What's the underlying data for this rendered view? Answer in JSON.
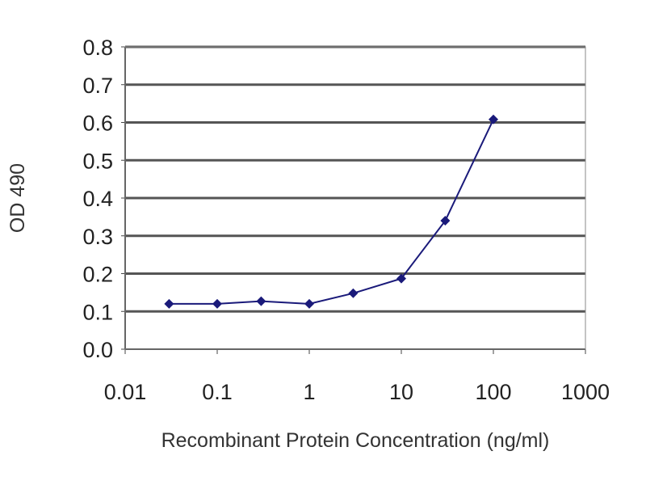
{
  "chart_data": {
    "type": "line",
    "title": "",
    "xlabel": "Recombinant Protein Concentration (ng/ml)",
    "ylabel": "OD 490",
    "xscale": "log",
    "xlim": [
      0.01,
      1000
    ],
    "ylim": [
      0,
      0.8
    ],
    "xticks": [
      "0.01",
      "0.1",
      "1",
      "10",
      "100",
      "1000"
    ],
    "yticks": [
      "0.0",
      "0.1",
      "0.2",
      "0.3",
      "0.4",
      "0.5",
      "0.6",
      "0.7",
      "0.8"
    ],
    "grid": "horizontal",
    "legend": "none",
    "series": [
      {
        "x": [
          0.03,
          0.1,
          0.3,
          1,
          3,
          10,
          30,
          100
        ],
        "y": [
          0.12,
          0.12,
          0.127,
          0.12,
          0.148,
          0.187,
          0.34,
          0.608
        ],
        "color": "#1a1a7a",
        "marker": "diamond"
      }
    ],
    "colors": {
      "series": "#1a1a7a",
      "grid": "#555555",
      "plot_background": "#ffffff"
    }
  }
}
